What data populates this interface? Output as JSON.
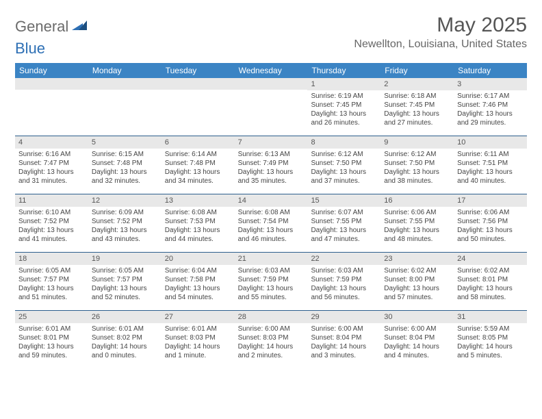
{
  "logo": {
    "word1": "General",
    "word2": "Blue"
  },
  "title": "May 2025",
  "location": "Newellton, Louisiana, United States",
  "colors": {
    "header_bg": "#3b84c4",
    "header_text": "#ffffff",
    "week_divider": "#2c5f8d",
    "daynum_bg": "#e8e8e8",
    "body_text": "#444444",
    "title_text": "#555555",
    "location_text": "#666666",
    "logo_gray": "#6b6b6b",
    "logo_blue": "#2d6fb4"
  },
  "dow": [
    "Sunday",
    "Monday",
    "Tuesday",
    "Wednesday",
    "Thursday",
    "Friday",
    "Saturday"
  ],
  "weeks": [
    [
      {
        "n": "",
        "sr": "",
        "ss": "",
        "dl": ""
      },
      {
        "n": "",
        "sr": "",
        "ss": "",
        "dl": ""
      },
      {
        "n": "",
        "sr": "",
        "ss": "",
        "dl": ""
      },
      {
        "n": "",
        "sr": "",
        "ss": "",
        "dl": ""
      },
      {
        "n": "1",
        "sr": "Sunrise: 6:19 AM",
        "ss": "Sunset: 7:45 PM",
        "dl": "Daylight: 13 hours and 26 minutes."
      },
      {
        "n": "2",
        "sr": "Sunrise: 6:18 AM",
        "ss": "Sunset: 7:45 PM",
        "dl": "Daylight: 13 hours and 27 minutes."
      },
      {
        "n": "3",
        "sr": "Sunrise: 6:17 AM",
        "ss": "Sunset: 7:46 PM",
        "dl": "Daylight: 13 hours and 29 minutes."
      }
    ],
    [
      {
        "n": "4",
        "sr": "Sunrise: 6:16 AM",
        "ss": "Sunset: 7:47 PM",
        "dl": "Daylight: 13 hours and 31 minutes."
      },
      {
        "n": "5",
        "sr": "Sunrise: 6:15 AM",
        "ss": "Sunset: 7:48 PM",
        "dl": "Daylight: 13 hours and 32 minutes."
      },
      {
        "n": "6",
        "sr": "Sunrise: 6:14 AM",
        "ss": "Sunset: 7:48 PM",
        "dl": "Daylight: 13 hours and 34 minutes."
      },
      {
        "n": "7",
        "sr": "Sunrise: 6:13 AM",
        "ss": "Sunset: 7:49 PM",
        "dl": "Daylight: 13 hours and 35 minutes."
      },
      {
        "n": "8",
        "sr": "Sunrise: 6:12 AM",
        "ss": "Sunset: 7:50 PM",
        "dl": "Daylight: 13 hours and 37 minutes."
      },
      {
        "n": "9",
        "sr": "Sunrise: 6:12 AM",
        "ss": "Sunset: 7:50 PM",
        "dl": "Daylight: 13 hours and 38 minutes."
      },
      {
        "n": "10",
        "sr": "Sunrise: 6:11 AM",
        "ss": "Sunset: 7:51 PM",
        "dl": "Daylight: 13 hours and 40 minutes."
      }
    ],
    [
      {
        "n": "11",
        "sr": "Sunrise: 6:10 AM",
        "ss": "Sunset: 7:52 PM",
        "dl": "Daylight: 13 hours and 41 minutes."
      },
      {
        "n": "12",
        "sr": "Sunrise: 6:09 AM",
        "ss": "Sunset: 7:52 PM",
        "dl": "Daylight: 13 hours and 43 minutes."
      },
      {
        "n": "13",
        "sr": "Sunrise: 6:08 AM",
        "ss": "Sunset: 7:53 PM",
        "dl": "Daylight: 13 hours and 44 minutes."
      },
      {
        "n": "14",
        "sr": "Sunrise: 6:08 AM",
        "ss": "Sunset: 7:54 PM",
        "dl": "Daylight: 13 hours and 46 minutes."
      },
      {
        "n": "15",
        "sr": "Sunrise: 6:07 AM",
        "ss": "Sunset: 7:55 PM",
        "dl": "Daylight: 13 hours and 47 minutes."
      },
      {
        "n": "16",
        "sr": "Sunrise: 6:06 AM",
        "ss": "Sunset: 7:55 PM",
        "dl": "Daylight: 13 hours and 48 minutes."
      },
      {
        "n": "17",
        "sr": "Sunrise: 6:06 AM",
        "ss": "Sunset: 7:56 PM",
        "dl": "Daylight: 13 hours and 50 minutes."
      }
    ],
    [
      {
        "n": "18",
        "sr": "Sunrise: 6:05 AM",
        "ss": "Sunset: 7:57 PM",
        "dl": "Daylight: 13 hours and 51 minutes."
      },
      {
        "n": "19",
        "sr": "Sunrise: 6:05 AM",
        "ss": "Sunset: 7:57 PM",
        "dl": "Daylight: 13 hours and 52 minutes."
      },
      {
        "n": "20",
        "sr": "Sunrise: 6:04 AM",
        "ss": "Sunset: 7:58 PM",
        "dl": "Daylight: 13 hours and 54 minutes."
      },
      {
        "n": "21",
        "sr": "Sunrise: 6:03 AM",
        "ss": "Sunset: 7:59 PM",
        "dl": "Daylight: 13 hours and 55 minutes."
      },
      {
        "n": "22",
        "sr": "Sunrise: 6:03 AM",
        "ss": "Sunset: 7:59 PM",
        "dl": "Daylight: 13 hours and 56 minutes."
      },
      {
        "n": "23",
        "sr": "Sunrise: 6:02 AM",
        "ss": "Sunset: 8:00 PM",
        "dl": "Daylight: 13 hours and 57 minutes."
      },
      {
        "n": "24",
        "sr": "Sunrise: 6:02 AM",
        "ss": "Sunset: 8:01 PM",
        "dl": "Daylight: 13 hours and 58 minutes."
      }
    ],
    [
      {
        "n": "25",
        "sr": "Sunrise: 6:01 AM",
        "ss": "Sunset: 8:01 PM",
        "dl": "Daylight: 13 hours and 59 minutes."
      },
      {
        "n": "26",
        "sr": "Sunrise: 6:01 AM",
        "ss": "Sunset: 8:02 PM",
        "dl": "Daylight: 14 hours and 0 minutes."
      },
      {
        "n": "27",
        "sr": "Sunrise: 6:01 AM",
        "ss": "Sunset: 8:03 PM",
        "dl": "Daylight: 14 hours and 1 minute."
      },
      {
        "n": "28",
        "sr": "Sunrise: 6:00 AM",
        "ss": "Sunset: 8:03 PM",
        "dl": "Daylight: 14 hours and 2 minutes."
      },
      {
        "n": "29",
        "sr": "Sunrise: 6:00 AM",
        "ss": "Sunset: 8:04 PM",
        "dl": "Daylight: 14 hours and 3 minutes."
      },
      {
        "n": "30",
        "sr": "Sunrise: 6:00 AM",
        "ss": "Sunset: 8:04 PM",
        "dl": "Daylight: 14 hours and 4 minutes."
      },
      {
        "n": "31",
        "sr": "Sunrise: 5:59 AM",
        "ss": "Sunset: 8:05 PM",
        "dl": "Daylight: 14 hours and 5 minutes."
      }
    ]
  ]
}
